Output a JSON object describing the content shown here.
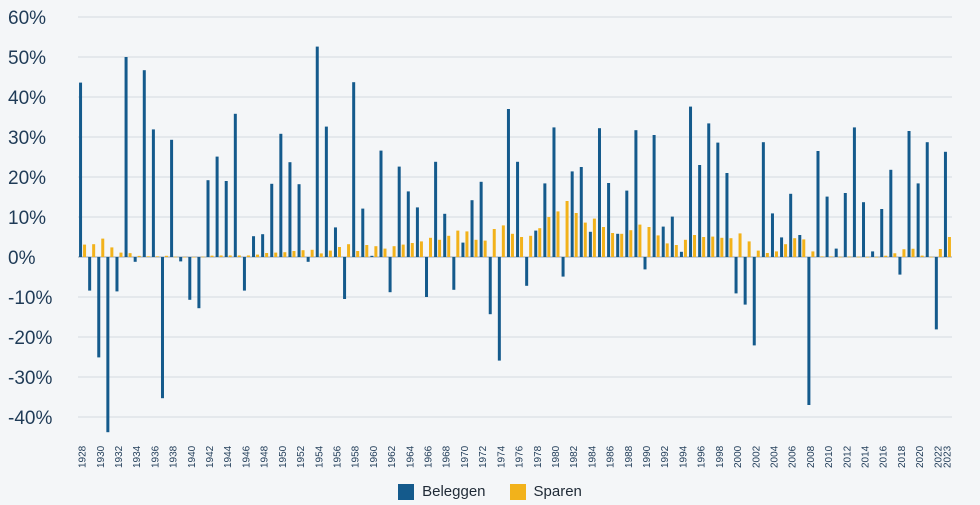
{
  "chart_data": {
    "type": "bar",
    "title": "",
    "xlabel": "",
    "ylabel": "",
    "ylim": [
      -45,
      60
    ],
    "yticks": [
      -40,
      -30,
      -20,
      -10,
      0,
      10,
      20,
      30,
      40,
      50,
      60
    ],
    "ytick_labels": [
      "-40%",
      "-30%",
      "-20%",
      "-10%",
      "0%",
      "10%",
      "20%",
      "30%",
      "40%",
      "50%",
      "60%"
    ],
    "categories": [
      "1928",
      "1929",
      "1930",
      "1931",
      "1932",
      "1933",
      "1934",
      "1935",
      "1936",
      "1937",
      "1938",
      "1939",
      "1940",
      "1941",
      "1942",
      "1943",
      "1944",
      "1945",
      "1946",
      "1947",
      "1948",
      "1949",
      "1950",
      "1951",
      "1952",
      "1953",
      "1954",
      "1955",
      "1956",
      "1957",
      "1958",
      "1959",
      "1960",
      "1961",
      "1962",
      "1963",
      "1964",
      "1965",
      "1966",
      "1967",
      "1968",
      "1969",
      "1970",
      "1971",
      "1972",
      "1973",
      "1974",
      "1975",
      "1976",
      "1977",
      "1978",
      "1979",
      "1980",
      "1981",
      "1982",
      "1983",
      "1984",
      "1985",
      "1986",
      "1987",
      "1988",
      "1989",
      "1990",
      "1991",
      "1992",
      "1993",
      "1994",
      "1995",
      "1996",
      "1997",
      "1998",
      "1999",
      "2000",
      "2001",
      "2002",
      "2003",
      "2004",
      "2005",
      "2006",
      "2007",
      "2008",
      "2009",
      "2010",
      "2011",
      "2012",
      "2013",
      "2014",
      "2015",
      "2016",
      "2017",
      "2018",
      "2019",
      "2020",
      "2021",
      "2022",
      "2023"
    ],
    "xtick_labels": [
      "1928",
      "1930",
      "1932",
      "1934",
      "1936",
      "1938",
      "1940",
      "1942",
      "1944",
      "1946",
      "1948",
      "1950",
      "1952",
      "1954",
      "1956",
      "1958",
      "1960",
      "1962",
      "1964",
      "1966",
      "1968",
      "1970",
      "1972",
      "1974",
      "1976",
      "1978",
      "1980",
      "1982",
      "1984",
      "1986",
      "1988",
      "1990",
      "1992",
      "1994",
      "1996",
      "1998",
      "2000",
      "2002",
      "2004",
      "2006",
      "2008",
      "2010",
      "2012",
      "2014",
      "2016",
      "2018",
      "2020",
      "2022",
      "2023"
    ],
    "series": [
      {
        "name": "Beleggen",
        "color": "#145a8c",
        "values": [
          43.6,
          -8.4,
          -25.1,
          -43.8,
          -8.6,
          50.0,
          -1.2,
          46.7,
          31.9,
          -35.3,
          29.3,
          -1.1,
          -10.7,
          -12.8,
          19.2,
          25.1,
          19.0,
          35.8,
          -8.4,
          5.2,
          5.7,
          18.3,
          30.8,
          23.7,
          18.2,
          -1.2,
          52.6,
          32.6,
          7.4,
          -10.5,
          43.7,
          12.1,
          0.3,
          26.6,
          -8.8,
          22.6,
          16.4,
          12.4,
          -10.0,
          23.8,
          10.8,
          -8.2,
          3.6,
          14.2,
          18.8,
          -14.3,
          -25.9,
          37.0,
          23.8,
          -7.2,
          6.6,
          18.4,
          32.4,
          -4.9,
          21.4,
          22.5,
          6.3,
          32.2,
          18.5,
          5.8,
          16.6,
          31.7,
          -3.1,
          30.5,
          7.6,
          10.1,
          1.3,
          37.6,
          23.0,
          33.4,
          28.6,
          21.0,
          -9.1,
          -11.9,
          -22.1,
          28.7,
          10.9,
          4.9,
          15.8,
          5.5,
          -37.0,
          26.5,
          15.1,
          2.1,
          16.0,
          32.4,
          13.7,
          1.4,
          12.0,
          21.8,
          -4.4,
          31.5,
          18.4,
          28.7,
          -18.1,
          26.3
        ]
      },
      {
        "name": "Sparen",
        "color": "#f2b21b",
        "values": [
          3.1,
          3.2,
          4.6,
          2.4,
          1.1,
          0.96,
          0.28,
          0.17,
          0.17,
          0.3,
          0.08,
          0.04,
          0.03,
          0.08,
          0.34,
          0.38,
          0.38,
          0.38,
          0.38,
          0.6,
          1.0,
          1.1,
          1.2,
          1.5,
          1.7,
          1.8,
          0.9,
          1.6,
          2.5,
          3.2,
          1.5,
          3.0,
          2.7,
          2.1,
          2.7,
          3.1,
          3.5,
          3.9,
          4.8,
          4.3,
          5.3,
          6.6,
          6.4,
          4.3,
          4.1,
          7.0,
          7.9,
          5.8,
          5.0,
          5.3,
          7.2,
          10.0,
          11.4,
          14.0,
          11.0,
          8.6,
          9.6,
          7.5,
          6.0,
          5.8,
          6.7,
          8.1,
          7.5,
          5.4,
          3.4,
          3.0,
          4.3,
          5.5,
          5.0,
          5.1,
          4.8,
          4.7,
          5.9,
          3.9,
          1.6,
          1.0,
          1.4,
          3.2,
          4.7,
          4.4,
          1.4,
          0.15,
          0.14,
          0.05,
          0.09,
          0.06,
          0.03,
          0.05,
          0.32,
          0.93,
          1.94,
          2.06,
          0.35,
          0.05,
          2.0,
          5.0
        ]
      }
    ],
    "legend": {
      "position": "bottom-center"
    }
  }
}
